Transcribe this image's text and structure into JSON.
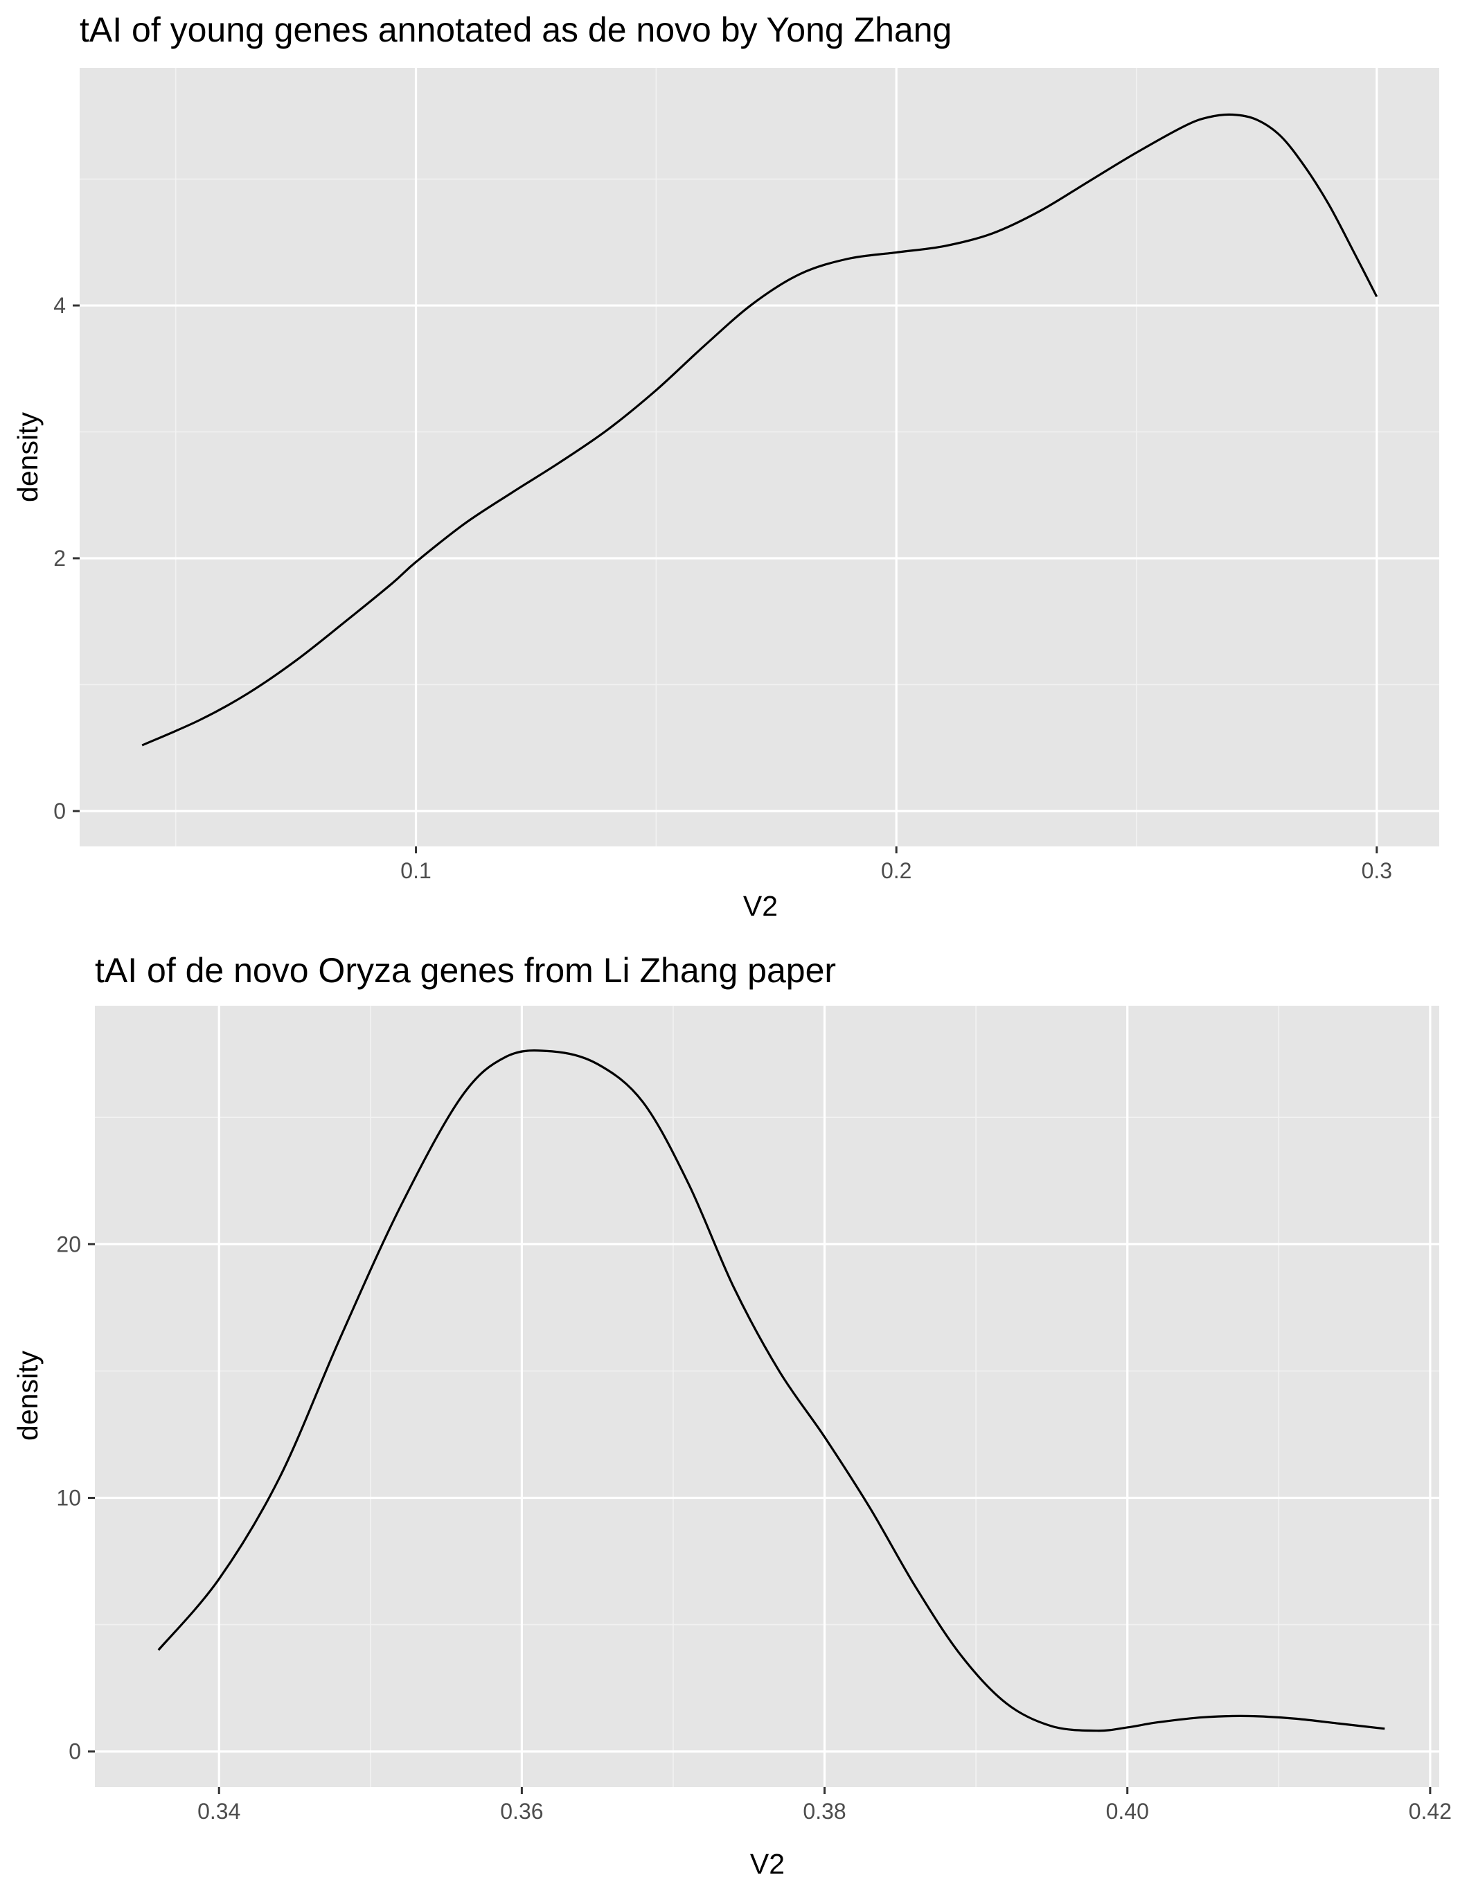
{
  "chart_data": [
    {
      "type": "line",
      "subtype": "density",
      "title": "tAI of young genes annotated as de novo by Yong Zhang",
      "xlabel": "V2",
      "ylabel": "density",
      "xlim": [
        0.03,
        0.313
      ],
      "ylim": [
        -0.28,
        5.88
      ],
      "x_ticks": [
        0.1,
        0.2,
        0.3
      ],
      "x_tick_labels": [
        "0.1",
        "0.2",
        "0.3"
      ],
      "x_minor_ticks": [
        0.05,
        0.15,
        0.25
      ],
      "y_ticks": [
        0,
        2,
        4
      ],
      "y_tick_labels": [
        "0",
        "2",
        "4"
      ],
      "y_minor_ticks": [
        1,
        3,
        5
      ],
      "grid": true,
      "background": "#e5e5e5",
      "line_color": "#000000",
      "series": [
        {
          "x": [
            0.043,
            0.055,
            0.065,
            0.075,
            0.085,
            0.095,
            0.1,
            0.11,
            0.12,
            0.13,
            0.14,
            0.15,
            0.16,
            0.17,
            0.18,
            0.19,
            0.2,
            0.21,
            0.22,
            0.23,
            0.24,
            0.25,
            0.26,
            0.265,
            0.27,
            0.275,
            0.28,
            0.285,
            0.29,
            0.295,
            0.3
          ],
          "values": [
            0.52,
            0.72,
            0.93,
            1.19,
            1.49,
            1.8,
            1.97,
            2.27,
            2.52,
            2.76,
            3.02,
            3.33,
            3.68,
            4.01,
            4.25,
            4.37,
            4.42,
            4.47,
            4.57,
            4.75,
            4.98,
            5.21,
            5.42,
            5.49,
            5.51,
            5.47,
            5.34,
            5.1,
            4.8,
            4.44,
            4.07
          ]
        }
      ]
    },
    {
      "type": "line",
      "subtype": "density",
      "title": "tAI of de novo Oryza genes from Li Zhang paper",
      "xlabel": "V2",
      "ylabel": "density",
      "xlim": [
        0.3318,
        0.4206
      ],
      "ylim": [
        -1.4,
        29.4
      ],
      "x_ticks": [
        0.34,
        0.36,
        0.38,
        0.4,
        0.42
      ],
      "x_tick_labels": [
        "0.34",
        "0.36",
        "0.38",
        "0.40",
        "0.42"
      ],
      "x_minor_ticks": [
        0.35,
        0.37,
        0.39,
        0.41
      ],
      "y_ticks": [
        0,
        10,
        20
      ],
      "y_tick_labels": [
        "0",
        "10",
        "20"
      ],
      "y_minor_ticks": [
        5,
        15,
        25
      ],
      "grid": true,
      "background": "#e5e5e5",
      "line_color": "#000000",
      "series": [
        {
          "x": [
            0.336,
            0.34,
            0.344,
            0.348,
            0.352,
            0.356,
            0.359,
            0.362,
            0.365,
            0.368,
            0.371,
            0.374,
            0.377,
            0.38,
            0.383,
            0.386,
            0.389,
            0.392,
            0.395,
            0.398,
            0.4,
            0.402,
            0.405,
            0.408,
            0.411,
            0.414,
            0.417
          ],
          "values": [
            4.0,
            6.8,
            10.8,
            16.3,
            21.5,
            25.8,
            27.4,
            27.6,
            27.1,
            25.6,
            22.4,
            18.3,
            15.0,
            12.4,
            9.6,
            6.5,
            3.8,
            1.9,
            1.0,
            0.82,
            0.95,
            1.15,
            1.35,
            1.4,
            1.3,
            1.1,
            0.9
          ]
        }
      ]
    }
  ]
}
